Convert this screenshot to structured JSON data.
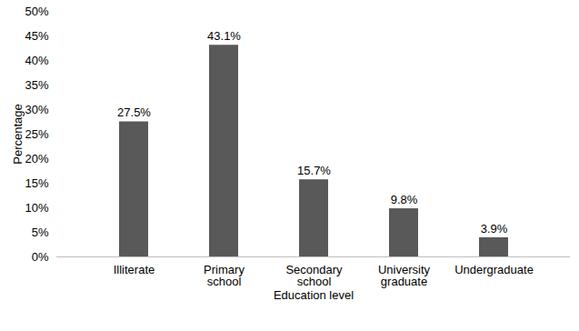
{
  "chart_data": {
    "type": "bar",
    "x_label": "Education level",
    "y_label": "Percentage",
    "categories": [
      "Illiterate",
      "Primary school",
      "Secondary school",
      "University graduate",
      "Undergraduate"
    ],
    "values": [
      27.5,
      43.1,
      15.7,
      9.8,
      3.9
    ],
    "value_labels": [
      "27.5%",
      "43.1%",
      "15.7%",
      "9.8%",
      "3.9%"
    ],
    "data_labels": true,
    "color": "#595959",
    "ylim": [
      0,
      50
    ],
    "yticks": [
      {
        "value": 0,
        "label": "0%"
      },
      {
        "value": 5,
        "label": "5%"
      },
      {
        "value": 10,
        "label": "10%"
      },
      {
        "value": 15,
        "label": "15%"
      },
      {
        "value": 20,
        "label": "20%"
      },
      {
        "value": 25,
        "label": "25%"
      },
      {
        "value": 30,
        "label": "30%"
      },
      {
        "value": 35,
        "label": "35%"
      },
      {
        "value": 40,
        "label": "40%"
      },
      {
        "value": 45,
        "label": "45%"
      },
      {
        "value": 50,
        "label": "50%"
      }
    ],
    "grid": false
  }
}
